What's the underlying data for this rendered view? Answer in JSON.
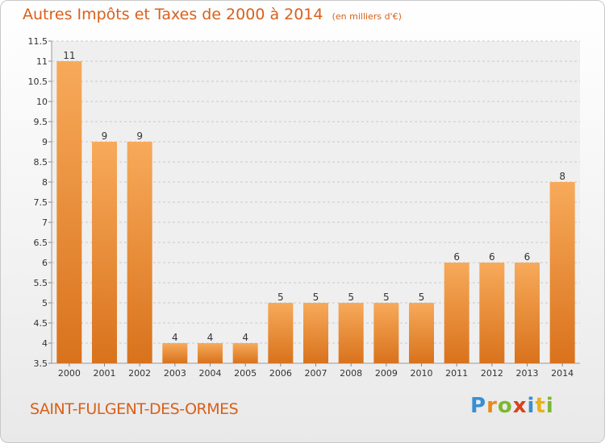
{
  "header": {
    "title": "Autres Impôts et Taxes de 2000 à 2014",
    "unit_note": "(en milliers d'€)"
  },
  "footer": {
    "commune": "SAINT-FULGENT-DES-ORMES",
    "logo_letters": [
      "P",
      "r",
      "o",
      "x",
      "i",
      "t",
      "i"
    ],
    "logo_colors": [
      "#3a8fd0",
      "#e88a1a",
      "#7cb82f",
      "#d9421a",
      "#3a8fd0",
      "#e8b21a",
      "#7cb82f"
    ]
  },
  "colors": {
    "bar_top": "#f7aa5a",
    "bar_bottom": "#d9721c",
    "grid": "#c8c8c8",
    "axis_text": "#333333"
  },
  "chart_data": {
    "type": "bar",
    "categories": [
      "2000",
      "2001",
      "2002",
      "2003",
      "2004",
      "2005",
      "2006",
      "2007",
      "2008",
      "2009",
      "2010",
      "2011",
      "2012",
      "2013",
      "2014"
    ],
    "values": [
      11,
      9,
      9,
      4,
      4,
      4,
      5,
      5,
      5,
      5,
      5,
      6,
      6,
      6,
      8
    ],
    "data_labels": [
      "11",
      "9",
      "9",
      "4",
      "4",
      "4",
      "5",
      "5",
      "5",
      "5",
      "5",
      "6",
      "6",
      "6",
      "8"
    ],
    "ylim": [
      3.5,
      11.5
    ],
    "yticks": [
      3.5,
      4,
      4.5,
      5,
      5.5,
      6,
      6.5,
      7,
      7.5,
      8,
      8.5,
      9,
      9.5,
      10,
      10.5,
      11,
      11.5
    ],
    "ytick_labels": [
      "3.5",
      "4",
      "4.5",
      "5",
      "5.5",
      "6",
      "6.5",
      "7",
      "7.5",
      "8",
      "8.5",
      "9",
      "9.5",
      "10",
      "10.5",
      "11",
      "11.5"
    ],
    "grid": true,
    "grid_style": "dashed-horizontal"
  }
}
